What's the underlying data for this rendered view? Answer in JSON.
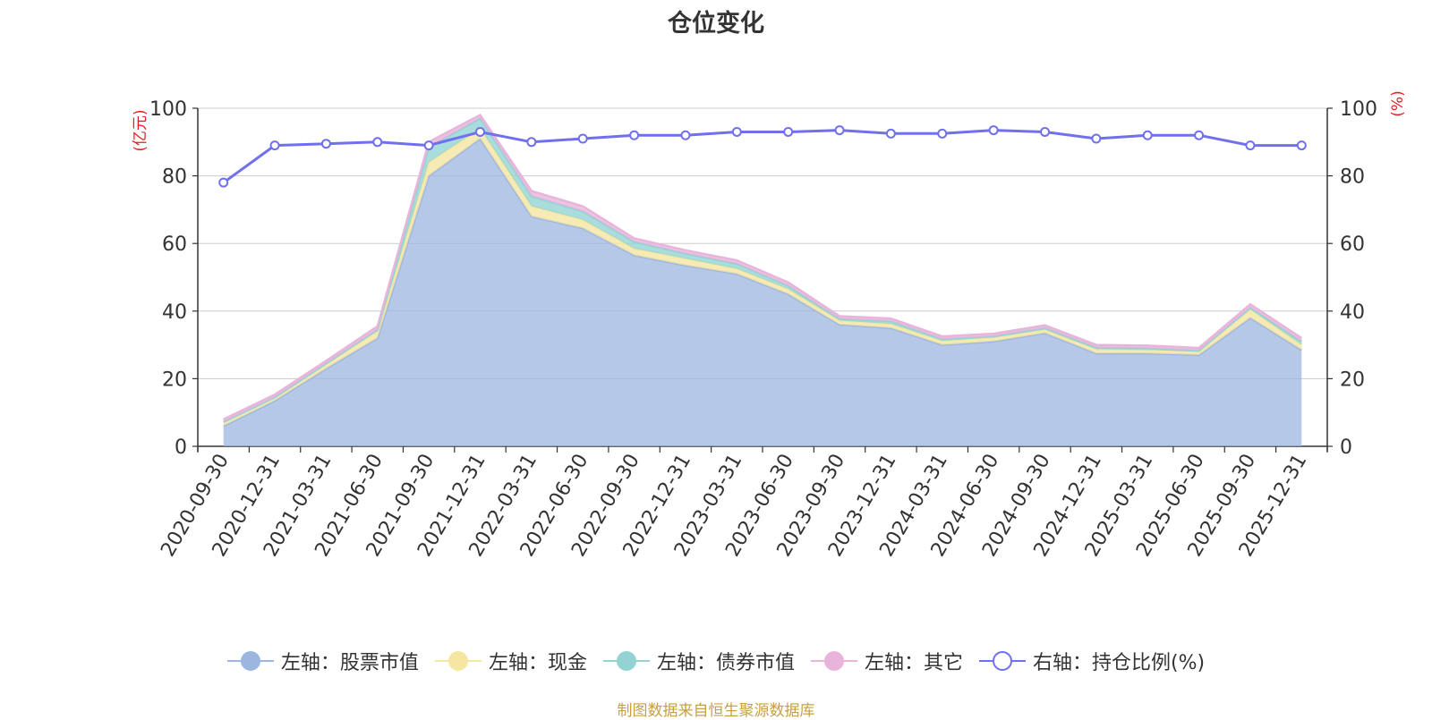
{
  "title": "仓位变化",
  "source": "制图数据来自恒生聚源数据库",
  "chart_data": {
    "type": "area",
    "title": "仓位变化",
    "left_axis": {
      "unit": "(亿元)",
      "range": [
        0,
        100
      ],
      "ticks": [
        "0",
        "20",
        "40",
        "60",
        "80",
        "100"
      ]
    },
    "right_axis": {
      "unit": "(%)",
      "range": [
        0,
        100
      ],
      "ticks": [
        "0",
        "20",
        "40",
        "60",
        "80",
        "100"
      ]
    },
    "grid": true,
    "legend_position": "bottom",
    "x": [
      "2020-09-30",
      "2020-12-31",
      "2021-03-31",
      "2021-06-30",
      "2021-09-30",
      "2021-12-31",
      "2022-03-31",
      "2022-06-30",
      "2022-09-30",
      "2022-12-31",
      "2023-03-31",
      "2023-06-30",
      "2023-09-30",
      "2023-12-31",
      "2024-03-31",
      "2024-06-30",
      "2024-09-30",
      "2024-12-31",
      "2025-03-31",
      "2025-06-30",
      "2025-09-30",
      "2025-12-31"
    ],
    "stacked_series": [
      {
        "name": "左轴：股票市值",
        "axis": "left",
        "color": "#9db6df",
        "values": [
          6,
          13.5,
          23,
          32,
          80,
          91,
          68,
          64.5,
          56.5,
          53.5,
          51,
          45,
          36,
          35,
          30,
          31,
          33.5,
          27.5,
          27.5,
          27,
          38,
          28.5
        ]
      },
      {
        "name": "左轴：现金",
        "axis": "left",
        "color": "#f5e6a2",
        "values": [
          1.2,
          1.0,
          1.5,
          2.0,
          4.0,
          3.0,
          3.0,
          2.5,
          2.0,
          2.0,
          1.5,
          1.5,
          1.2,
          1.2,
          1.2,
          1.2,
          1.0,
          1.2,
          1.0,
          1.0,
          2.5,
          1.5
        ]
      },
      {
        "name": "左轴：债券市值",
        "axis": "left",
        "color": "#93d3d3",
        "values": [
          0,
          0,
          0,
          0.5,
          4.5,
          3.0,
          3.0,
          2.5,
          2.0,
          1.5,
          1.5,
          1.0,
          0.5,
          0.8,
          0.5,
          0.3,
          0.5,
          0.5,
          0.5,
          0.3,
          0.5,
          1.0
        ]
      },
      {
        "name": "左轴：其它",
        "axis": "left",
        "color": "#e8b4dc",
        "values": [
          0.8,
          0.8,
          0.8,
          1.0,
          1.5,
          1.0,
          1.5,
          1.5,
          1.0,
          1.0,
          1.0,
          1.0,
          0.8,
          0.8,
          0.8,
          0.8,
          0.8,
          0.8,
          0.8,
          0.8,
          1.0,
          1.0
        ]
      }
    ],
    "line_series": {
      "name": "右轴：持仓比例(%)",
      "axis": "right",
      "color": "#7070ee",
      "values": [
        78,
        89,
        89.5,
        90,
        89,
        93,
        90,
        91,
        92,
        92,
        93,
        93,
        93.5,
        92.5,
        92.5,
        93.5,
        93,
        91,
        92,
        92,
        89,
        89
      ]
    }
  }
}
